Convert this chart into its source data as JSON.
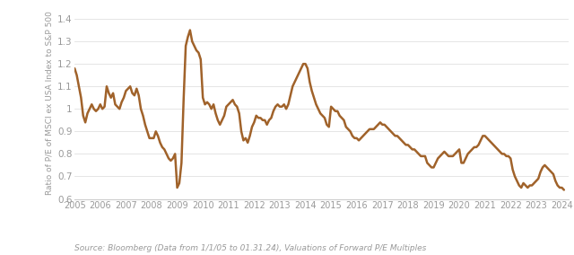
{
  "ylabel": "Ratio of P/E of MSCI ex USA Index to S&P 500",
  "source_text": "Source: Bloomberg (Data from 1/1/05 to 01.31.24), Valuations of Forward P/E Multiples",
  "line_color": "#A0622A",
  "line_width": 1.8,
  "background_color": "#ffffff",
  "ylim": [
    0.6,
    1.45
  ],
  "yticks": [
    0.6,
    0.7,
    0.8,
    0.9,
    1.0,
    1.1,
    1.2,
    1.3,
    1.4
  ],
  "ytick_labels": [
    "0.6",
    "0.7",
    "0.8",
    "0.9",
    "1",
    "1.1",
    "1.2",
    "1.3",
    "1.4"
  ],
  "xlim_start": 2005.0,
  "xlim_end": 2024.25,
  "xtick_labels": [
    "2005",
    "2006",
    "2007",
    "2008",
    "2009",
    "2010",
    "2011",
    "2012",
    "2013",
    "2014",
    "2015",
    "2016",
    "2017",
    "2018",
    "2019",
    "2020",
    "2021",
    "2022",
    "2023",
    "2024"
  ],
  "data": {
    "x": [
      2005.0,
      2005.083,
      2005.167,
      2005.25,
      2005.333,
      2005.417,
      2005.5,
      2005.583,
      2005.667,
      2005.75,
      2005.833,
      2005.917,
      2006.0,
      2006.083,
      2006.167,
      2006.25,
      2006.333,
      2006.417,
      2006.5,
      2006.583,
      2006.667,
      2006.75,
      2006.833,
      2006.917,
      2007.0,
      2007.083,
      2007.167,
      2007.25,
      2007.333,
      2007.417,
      2007.5,
      2007.583,
      2007.667,
      2007.75,
      2007.833,
      2007.917,
      2008.0,
      2008.083,
      2008.167,
      2008.25,
      2008.333,
      2008.417,
      2008.5,
      2008.583,
      2008.667,
      2008.75,
      2008.833,
      2008.917,
      2009.0,
      2009.083,
      2009.167,
      2009.25,
      2009.333,
      2009.417,
      2009.5,
      2009.583,
      2009.667,
      2009.75,
      2009.833,
      2009.917,
      2010.0,
      2010.083,
      2010.167,
      2010.25,
      2010.333,
      2010.417,
      2010.5,
      2010.583,
      2010.667,
      2010.75,
      2010.833,
      2010.917,
      2011.0,
      2011.083,
      2011.167,
      2011.25,
      2011.333,
      2011.417,
      2011.5,
      2011.583,
      2011.667,
      2011.75,
      2011.833,
      2011.917,
      2012.0,
      2012.083,
      2012.167,
      2012.25,
      2012.333,
      2012.417,
      2012.5,
      2012.583,
      2012.667,
      2012.75,
      2012.833,
      2012.917,
      2013.0,
      2013.083,
      2013.167,
      2013.25,
      2013.333,
      2013.417,
      2013.5,
      2013.583,
      2013.667,
      2013.75,
      2013.833,
      2013.917,
      2014.0,
      2014.083,
      2014.167,
      2014.25,
      2014.333,
      2014.417,
      2014.5,
      2014.583,
      2014.667,
      2014.75,
      2014.833,
      2014.917,
      2015.0,
      2015.083,
      2015.167,
      2015.25,
      2015.333,
      2015.417,
      2015.5,
      2015.583,
      2015.667,
      2015.75,
      2015.833,
      2015.917,
      2016.0,
      2016.083,
      2016.167,
      2016.25,
      2016.333,
      2016.417,
      2016.5,
      2016.583,
      2016.667,
      2016.75,
      2016.833,
      2016.917,
      2017.0,
      2017.083,
      2017.167,
      2017.25,
      2017.333,
      2017.417,
      2017.5,
      2017.583,
      2017.667,
      2017.75,
      2017.833,
      2017.917,
      2018.0,
      2018.083,
      2018.167,
      2018.25,
      2018.333,
      2018.417,
      2018.5,
      2018.583,
      2018.667,
      2018.75,
      2018.833,
      2018.917,
      2019.0,
      2019.083,
      2019.167,
      2019.25,
      2019.333,
      2019.417,
      2019.5,
      2019.583,
      2019.667,
      2019.75,
      2019.833,
      2019.917,
      2020.0,
      2020.083,
      2020.167,
      2020.25,
      2020.333,
      2020.417,
      2020.5,
      2020.583,
      2020.667,
      2020.75,
      2020.833,
      2020.917,
      2021.0,
      2021.083,
      2021.167,
      2021.25,
      2021.333,
      2021.417,
      2021.5,
      2021.583,
      2021.667,
      2021.75,
      2021.833,
      2021.917,
      2022.0,
      2022.083,
      2022.167,
      2022.25,
      2022.333,
      2022.417,
      2022.5,
      2022.583,
      2022.667,
      2022.75,
      2022.833,
      2022.917,
      2023.0,
      2023.083,
      2023.167,
      2023.25,
      2023.333,
      2023.417,
      2023.5,
      2023.583,
      2023.667,
      2023.75,
      2023.833,
      2023.917,
      2024.0,
      2024.083
    ],
    "y": [
      1.18,
      1.15,
      1.1,
      1.05,
      0.97,
      0.94,
      0.98,
      1.0,
      1.02,
      1.0,
      0.99,
      1.0,
      1.02,
      1.0,
      1.01,
      1.1,
      1.07,
      1.05,
      1.07,
      1.02,
      1.01,
      1.0,
      1.03,
      1.05,
      1.08,
      1.09,
      1.1,
      1.07,
      1.06,
      1.09,
      1.06,
      1.0,
      0.97,
      0.93,
      0.9,
      0.87,
      0.87,
      0.87,
      0.9,
      0.88,
      0.85,
      0.83,
      0.82,
      0.8,
      0.78,
      0.77,
      0.78,
      0.8,
      0.65,
      0.67,
      0.76,
      1.04,
      1.28,
      1.32,
      1.35,
      1.3,
      1.28,
      1.26,
      1.25,
      1.22,
      1.05,
      1.02,
      1.03,
      1.02,
      1.0,
      1.02,
      0.98,
      0.95,
      0.93,
      0.95,
      0.97,
      1.01,
      1.02,
      1.03,
      1.04,
      1.02,
      1.01,
      0.98,
      0.9,
      0.86,
      0.87,
      0.85,
      0.88,
      0.92,
      0.94,
      0.97,
      0.96,
      0.96,
      0.95,
      0.95,
      0.93,
      0.95,
      0.96,
      0.99,
      1.01,
      1.02,
      1.01,
      1.01,
      1.02,
      1.0,
      1.02,
      1.06,
      1.1,
      1.12,
      1.14,
      1.16,
      1.18,
      1.2,
      1.2,
      1.18,
      1.12,
      1.08,
      1.05,
      1.02,
      1.0,
      0.98,
      0.97,
      0.96,
      0.93,
      0.92,
      1.01,
      1.0,
      0.99,
      0.99,
      0.97,
      0.96,
      0.95,
      0.92,
      0.91,
      0.9,
      0.88,
      0.87,
      0.87,
      0.86,
      0.87,
      0.88,
      0.89,
      0.9,
      0.91,
      0.91,
      0.91,
      0.92,
      0.93,
      0.94,
      0.93,
      0.93,
      0.92,
      0.91,
      0.9,
      0.89,
      0.88,
      0.88,
      0.87,
      0.86,
      0.85,
      0.84,
      0.84,
      0.83,
      0.82,
      0.82,
      0.81,
      0.8,
      0.79,
      0.79,
      0.79,
      0.76,
      0.75,
      0.74,
      0.74,
      0.76,
      0.78,
      0.79,
      0.8,
      0.81,
      0.8,
      0.79,
      0.79,
      0.79,
      0.8,
      0.81,
      0.82,
      0.76,
      0.76,
      0.78,
      0.8,
      0.81,
      0.82,
      0.83,
      0.83,
      0.84,
      0.86,
      0.88,
      0.88,
      0.87,
      0.86,
      0.85,
      0.84,
      0.83,
      0.82,
      0.81,
      0.8,
      0.8,
      0.79,
      0.79,
      0.78,
      0.73,
      0.7,
      0.68,
      0.66,
      0.65,
      0.67,
      0.66,
      0.65,
      0.66,
      0.66,
      0.67,
      0.68,
      0.69,
      0.72,
      0.74,
      0.75,
      0.74,
      0.73,
      0.72,
      0.71,
      0.68,
      0.66,
      0.65,
      0.65,
      0.64
    ]
  }
}
